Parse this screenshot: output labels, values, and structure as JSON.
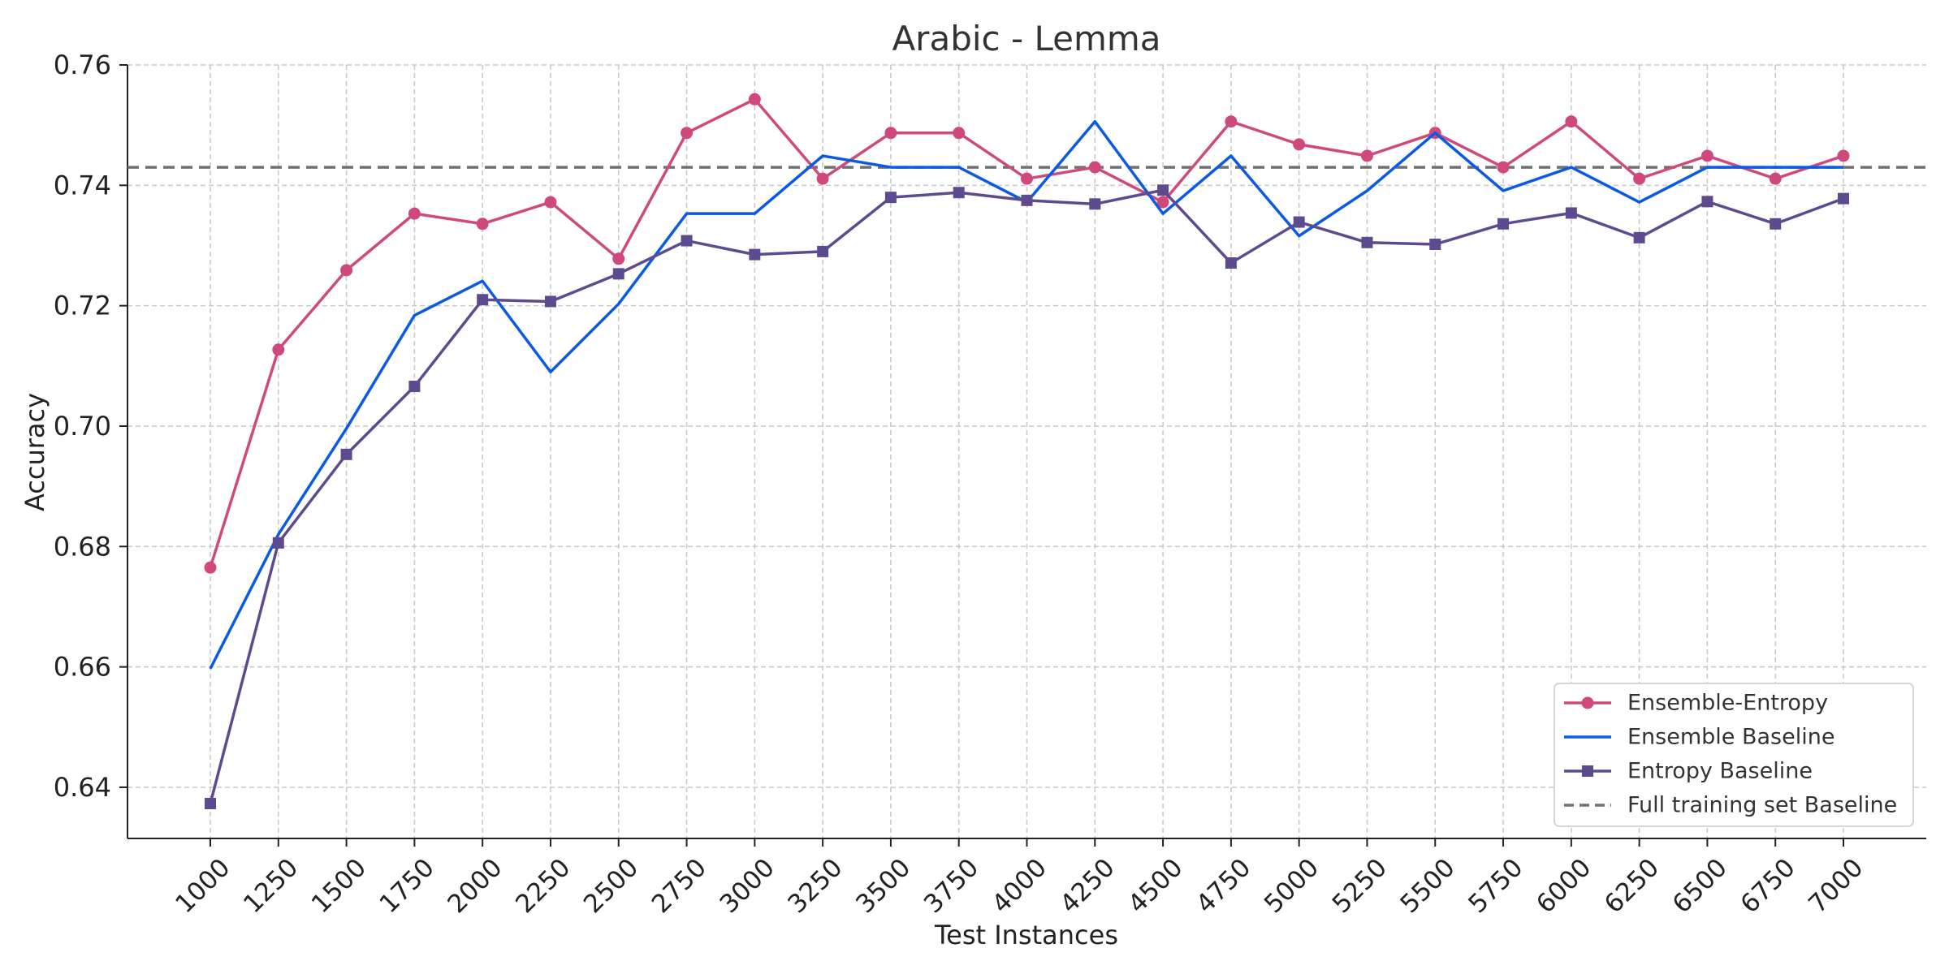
{
  "chart_data": {
    "type": "line",
    "title": "Arabic - Lemma",
    "xlabel": "Test Instances",
    "ylabel": "Accuracy",
    "x": [
      1000,
      1250,
      1500,
      1750,
      2000,
      2250,
      2500,
      2750,
      3000,
      3250,
      3500,
      3750,
      4000,
      4250,
      4500,
      4750,
      5000,
      5250,
      5500,
      5750,
      6000,
      6250,
      6500,
      6750,
      7000
    ],
    "ylim": [
      0.6315,
      0.76
    ],
    "yticks": [
      0.64,
      0.66,
      0.68,
      0.7,
      0.72,
      0.74,
      0.76
    ],
    "ytick_labels": [
      "0.64",
      "0.66",
      "0.68",
      "0.70",
      "0.72",
      "0.74",
      "0.76"
    ],
    "grid": true,
    "legend_position": "bottom-right",
    "series": [
      {
        "name": "Ensemble-Entropy",
        "color": "#d0497d",
        "marker": "circle",
        "values": [
          0.6765,
          0.7127,
          0.7259,
          0.7353,
          0.7336,
          0.7372,
          0.7278,
          0.7487,
          0.7543,
          0.7411,
          0.7487,
          0.7487,
          0.7411,
          0.743,
          0.7372,
          0.7506,
          0.7468,
          0.7449,
          0.7487,
          0.743,
          0.7506,
          0.7411,
          0.7449,
          0.7411,
          0.7449
        ]
      },
      {
        "name": "Ensemble Baseline",
        "color": "#0a5ae6",
        "marker": "none",
        "values": [
          0.6597,
          0.682,
          0.6996,
          0.7184,
          0.7241,
          0.709,
          0.7203,
          0.7353,
          0.7353,
          0.7449,
          0.743,
          0.743,
          0.7372,
          0.7506,
          0.7353,
          0.7449,
          0.7316,
          0.7391,
          0.7487,
          0.7391,
          0.743,
          0.7372,
          0.743,
          0.743,
          0.743
        ]
      },
      {
        "name": "Entropy Baseline",
        "color": "#5e4b8f",
        "marker": "square",
        "values": [
          0.6373,
          0.6806,
          0.6953,
          0.7066,
          0.721,
          0.7207,
          0.7253,
          0.7308,
          0.7285,
          0.729,
          0.738,
          0.7388,
          0.7375,
          0.7369,
          0.7392,
          0.7271,
          0.7339,
          0.7305,
          0.7302,
          0.7336,
          0.7354,
          0.7313,
          0.7373,
          0.7336,
          0.7378
        ]
      },
      {
        "name": "Full training set Baseline",
        "color": "#707070",
        "marker": "none",
        "dashed": true,
        "value": 0.743
      }
    ]
  }
}
